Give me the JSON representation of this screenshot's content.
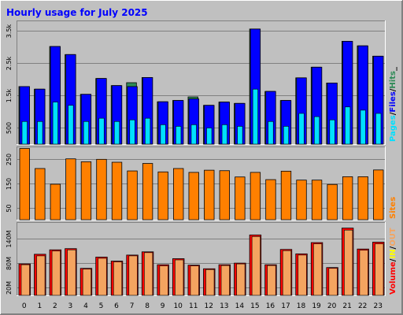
{
  "chart_data": {
    "type": "bar",
    "title": "Hourly usage for July 2025",
    "categories": [
      "0",
      "1",
      "2",
      "3",
      "4",
      "5",
      "6",
      "7",
      "8",
      "9",
      "10",
      "11",
      "12",
      "13",
      "14",
      "15",
      "16",
      "17",
      "18",
      "19",
      "20",
      "21",
      "22",
      "23"
    ],
    "panels": [
      {
        "id": "hits",
        "ylim": [
          0,
          3800
        ],
        "ticks": [
          500,
          1500,
          2500,
          3500
        ],
        "tick_labels": [
          "500",
          "1.5k",
          "2.5k",
          "3.5k"
        ],
        "legend": [
          "Pages",
          "/",
          "Files",
          "/",
          "Hits",
          "_"
        ],
        "series": [
          {
            "name": "Hits",
            "color": "#2e8b57",
            "values": [
              1780,
              1700,
              3020,
              2770,
              1540,
              2030,
              1810,
              1900,
              2060,
              1310,
              1350,
              1460,
              1200,
              1300,
              1260,
              3560,
              1630,
              1350,
              2050,
              2380,
              1890,
              3180,
              3040,
              2720
            ]
          },
          {
            "name": "Files",
            "color": "#0000ff",
            "values": [
              1780,
              1700,
              3020,
              2770,
              1540,
              2030,
              1810,
              1780,
              2060,
              1310,
              1350,
              1400,
              1200,
              1300,
              1260,
              3560,
              1630,
              1350,
              2050,
              2380,
              1890,
              3180,
              3040,
              2720
            ]
          },
          {
            "name": "Pages",
            "color": "#00e0ff",
            "values": [
              700,
              700,
              1300,
              1200,
              700,
              800,
              700,
              750,
              800,
              600,
              550,
              600,
              500,
              600,
              550,
              1700,
              700,
              550,
              950,
              850,
              750,
              1150,
              1050,
              950
            ]
          }
        ]
      },
      {
        "id": "sites",
        "ylim": [
          0,
          300
        ],
        "ticks": [
          50,
          150,
          250
        ],
        "tick_labels": [
          "50",
          "150",
          "250"
        ],
        "legend": [
          "Sites"
        ],
        "series": [
          {
            "name": "Sites",
            "color": "#ff8000",
            "values": [
              295,
              212,
              147,
              252,
              240,
              250,
              238,
              202,
              233,
              198,
              212,
              196,
              205,
              203,
              177,
              196,
              166,
              201,
              164,
              164,
              146,
              178,
              178,
              206
            ]
          }
        ]
      },
      {
        "id": "volume",
        "ylim": [
          0,
          180
        ],
        "ticks": [
          20,
          80,
          140
        ],
        "tick_labels": [
          "20M",
          "80M",
          "140M"
        ],
        "legend": [
          "Volume",
          "/",
          "IN",
          "/",
          "OUT"
        ],
        "series": [
          {
            "name": "Volume",
            "color": "#ff0000",
            "values": [
              78,
              102,
              113,
              116,
              67,
              95,
              85,
              100,
              108,
              76,
              91,
              75,
              66,
              76,
              80,
              150,
              76,
              114,
              103,
              131,
              69,
              167,
              115,
              132
            ]
          },
          {
            "name": "OUT",
            "color": "#f4a460",
            "values": [
              76,
              98,
              110,
              113,
              65,
              92,
              83,
              98,
              106,
              73,
              88,
              73,
              64,
              74,
              78,
              146,
              74,
              111,
              100,
              128,
              67,
              162,
              112,
              128
            ]
          }
        ]
      }
    ],
    "colors": {
      "background": "#c0c0c0",
      "plot_bg": "#c0c0c0",
      "title": "#0000ff",
      "legend_pages": "#00e0ff",
      "legend_files": "#0000ff",
      "legend_hits": "#2e8b57",
      "legend_sites": "#ff8000",
      "legend_volume": "#ff0000",
      "legend_in": "#ffff00",
      "legend_out": "#f4a460"
    }
  }
}
